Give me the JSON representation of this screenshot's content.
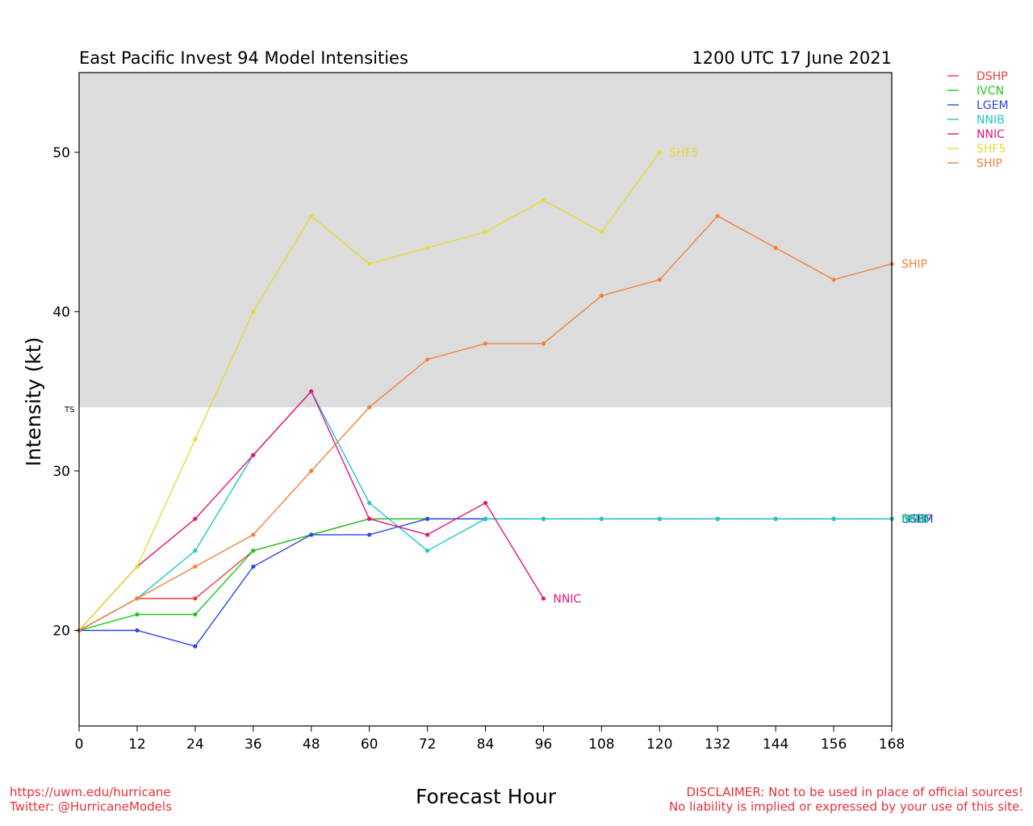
{
  "footer": {
    "website": "https://uwm.edu/hurricane",
    "twitter": "Twitter: @HurricaneModels",
    "disclaimer_line1": "DISCLAIMER: Not to be used in place of official sources!",
    "disclaimer_line2": "No liability is implied or expressed by your use of this site."
  },
  "chart_data": {
    "type": "line",
    "title": "East Pacific Invest 94 Model Intensities",
    "subtitle": "1200 UTC 17 June 2021",
    "xlabel": "Forecast Hour",
    "ylabel": "Intensity (kt)",
    "xlim": [
      0,
      168
    ],
    "ylim": [
      14,
      55
    ],
    "x_ticks": [
      0,
      12,
      24,
      36,
      48,
      60,
      72,
      84,
      96,
      108,
      120,
      132,
      144,
      156,
      168
    ],
    "y_ticks": [
      20,
      30,
      40,
      50
    ],
    "threshold": {
      "label": "TS",
      "value": 34,
      "shade_above": true,
      "shade_color": "#dcdcdc"
    },
    "grid": false,
    "legend_position": "top-right, outside plot",
    "series": [
      {
        "name": "DSHP",
        "color": "#f03c3c",
        "x": [
          0,
          12,
          24,
          36,
          48,
          60,
          72,
          84,
          96,
          108,
          120,
          132,
          144,
          156,
          168
        ],
        "values": [
          20,
          22,
          22,
          25,
          26,
          27,
          27,
          27,
          27,
          27,
          27,
          27,
          27,
          27,
          27
        ],
        "end_label": "DSHP"
      },
      {
        "name": "IVCN",
        "color": "#1ec81e",
        "x": [
          0,
          12,
          24,
          36,
          48,
          60,
          72,
          84,
          96,
          108,
          120,
          132,
          144,
          156,
          168
        ],
        "values": [
          20,
          21,
          21,
          25,
          26,
          27,
          27,
          27,
          27,
          27,
          27,
          27,
          27,
          27,
          27
        ],
        "end_label": "IVCN"
      },
      {
        "name": "LGEM",
        "color": "#2846e6",
        "x": [
          0,
          12,
          24,
          36,
          48,
          60,
          72,
          84,
          96,
          108,
          120,
          132,
          144,
          156,
          168
        ],
        "values": [
          20,
          20,
          19,
          24,
          26,
          26,
          27,
          27,
          27,
          27,
          27,
          27,
          27,
          27,
          27
        ],
        "end_label": "LGEM"
      },
      {
        "name": "NNIB",
        "color": "#1ec8c8",
        "x": [
          0,
          12,
          24,
          36,
          48,
          60,
          72,
          84,
          96,
          108,
          120,
          132,
          144,
          156,
          168
        ],
        "values": [
          20,
          22,
          25,
          31,
          35,
          28,
          25,
          27,
          27,
          27,
          27,
          27,
          27,
          27,
          27
        ],
        "end_label": "NNIB"
      },
      {
        "name": "NNIC",
        "color": "#e6147a",
        "x": [
          0,
          12,
          24,
          36,
          48,
          60,
          72,
          84,
          96
        ],
        "values": [
          20,
          24,
          27,
          31,
          35,
          27,
          26,
          28,
          22
        ],
        "end_label": "NNIC"
      },
      {
        "name": "SHF5",
        "color": "#e6dc32",
        "x": [
          0,
          12,
          24,
          36,
          48,
          60,
          72,
          84,
          96,
          108,
          120
        ],
        "values": [
          20,
          24,
          32,
          40,
          46,
          43,
          44,
          45,
          47,
          45,
          50
        ],
        "end_label": "SHF5"
      },
      {
        "name": "SHIP",
        "color": "#f0823c",
        "x": [
          0,
          12,
          24,
          36,
          48,
          60,
          72,
          84,
          96,
          108,
          120,
          132,
          144,
          156,
          168
        ],
        "values": [
          20,
          22,
          24,
          26,
          30,
          34,
          37,
          38,
          38,
          41,
          42,
          46,
          44,
          42,
          43
        ],
        "end_label": "SHIP"
      }
    ]
  }
}
